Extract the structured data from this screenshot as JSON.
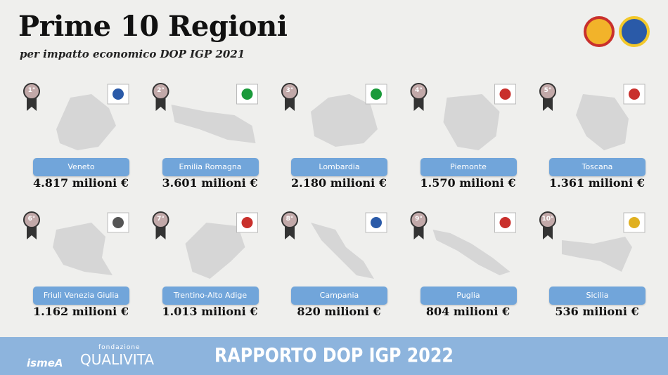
{
  "header": {
    "title": "Prime 10 Regioni",
    "subtitle": "per impatto economico DOP IGP 2021"
  },
  "regions": [
    {
      "rank": "1°",
      "name": "Veneto",
      "value": "4.817 milioni €"
    },
    {
      "rank": "2°",
      "name": "Emilia Romagna",
      "value": "3.601 milioni €"
    },
    {
      "rank": "3°",
      "name": "Lombardia",
      "value": "2.180 milioni €"
    },
    {
      "rank": "4°",
      "name": "Piemonte",
      "value": "1.570 milioni €"
    },
    {
      "rank": "5°",
      "name": "Toscana",
      "value": "1.361 milioni €"
    },
    {
      "rank": "6°",
      "name": "Friuli Venezia Giulia",
      "value": "1.162 milioni €"
    },
    {
      "rank": "7°",
      "name": "Trentino-Alto Adige",
      "value": "1.013 milioni €"
    },
    {
      "rank": "8°",
      "name": "Campania",
      "value": "820 milioni €"
    },
    {
      "rank": "9°",
      "name": "Puglia",
      "value": "804 milioni €"
    },
    {
      "rank": "10°",
      "name": "Sicilia",
      "value": "536 milioni €"
    }
  ],
  "footer": {
    "title": "RAPPORTO DOP IGP 2022",
    "logo_ismea": "ismeA",
    "logo_fondazione": "fondazione",
    "logo_qualivita": "QUALIVITA"
  }
}
